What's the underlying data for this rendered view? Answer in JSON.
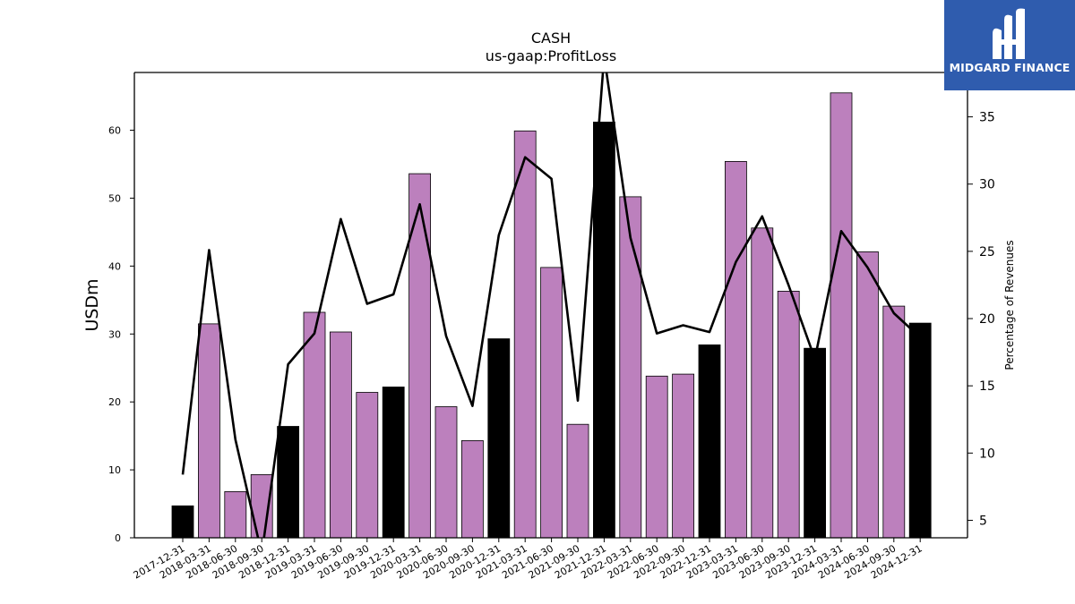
{
  "brand": {
    "name": "MIDGARD FINANCE",
    "bg_color": "#2f5cae"
  },
  "chart_data": {
    "type": "bar",
    "title": "CASH",
    "subtitle": "us-gaap:ProfitLoss",
    "ylabel": "USDm",
    "y2label": "Percentage of Revenues",
    "ylim": [
      0,
      68.5
    ],
    "y2lim": [
      3.7,
      38.3
    ],
    "yticks": [
      0,
      10,
      20,
      30,
      40,
      50,
      60
    ],
    "y2ticks": [
      5,
      10,
      15,
      20,
      25,
      30,
      35
    ],
    "categories": [
      "2017-12-31",
      "2018-03-31",
      "2018-06-30",
      "2018-09-30",
      "2018-12-31",
      "2019-03-31",
      "2019-06-30",
      "2019-09-30",
      "2019-12-31",
      "2020-03-31",
      "2020-06-30",
      "2020-09-30",
      "2020-12-31",
      "2021-03-31",
      "2021-06-30",
      "2021-09-30",
      "2021-12-31",
      "2022-03-31",
      "2022-06-30",
      "2022-09-30",
      "2022-12-31",
      "2023-03-31",
      "2023-06-30",
      "2023-09-30",
      "2023-12-31",
      "2024-03-31",
      "2024-06-30",
      "2024-09-30",
      "2024-12-31"
    ],
    "series": [
      {
        "type": "bar",
        "values": [
          4.7,
          31.5,
          6.8,
          9.3,
          16.4,
          33.2,
          30.3,
          21.4,
          22.2,
          53.6,
          19.3,
          14.3,
          29.3,
          59.9,
          39.8,
          16.7,
          61.2,
          50.2,
          23.8,
          24.1,
          28.4,
          55.4,
          45.6,
          36.3,
          27.9,
          65.5,
          42.1,
          34.1,
          31.6
        ],
        "highlight": [
          true,
          false,
          false,
          false,
          true,
          false,
          false,
          false,
          true,
          false,
          false,
          false,
          true,
          false,
          false,
          false,
          true,
          false,
          false,
          false,
          true,
          false,
          false,
          false,
          true,
          false,
          false,
          false,
          true
        ],
        "color": "#bc80bd",
        "highlight_color": "#000000"
      },
      {
        "type": "line",
        "axis": "right",
        "values": [
          8.4,
          25.1,
          11.0,
          2.5,
          16.6,
          18.9,
          27.4,
          21.1,
          21.8,
          28.5,
          18.7,
          13.5,
          26.2,
          32.0,
          30.4,
          13.9,
          39.5,
          26.0,
          18.9,
          19.5,
          19.0,
          24.2,
          27.6,
          22.5,
          17.0,
          26.5,
          23.8,
          20.4,
          18.6
        ],
        "color": "#000000"
      }
    ]
  }
}
